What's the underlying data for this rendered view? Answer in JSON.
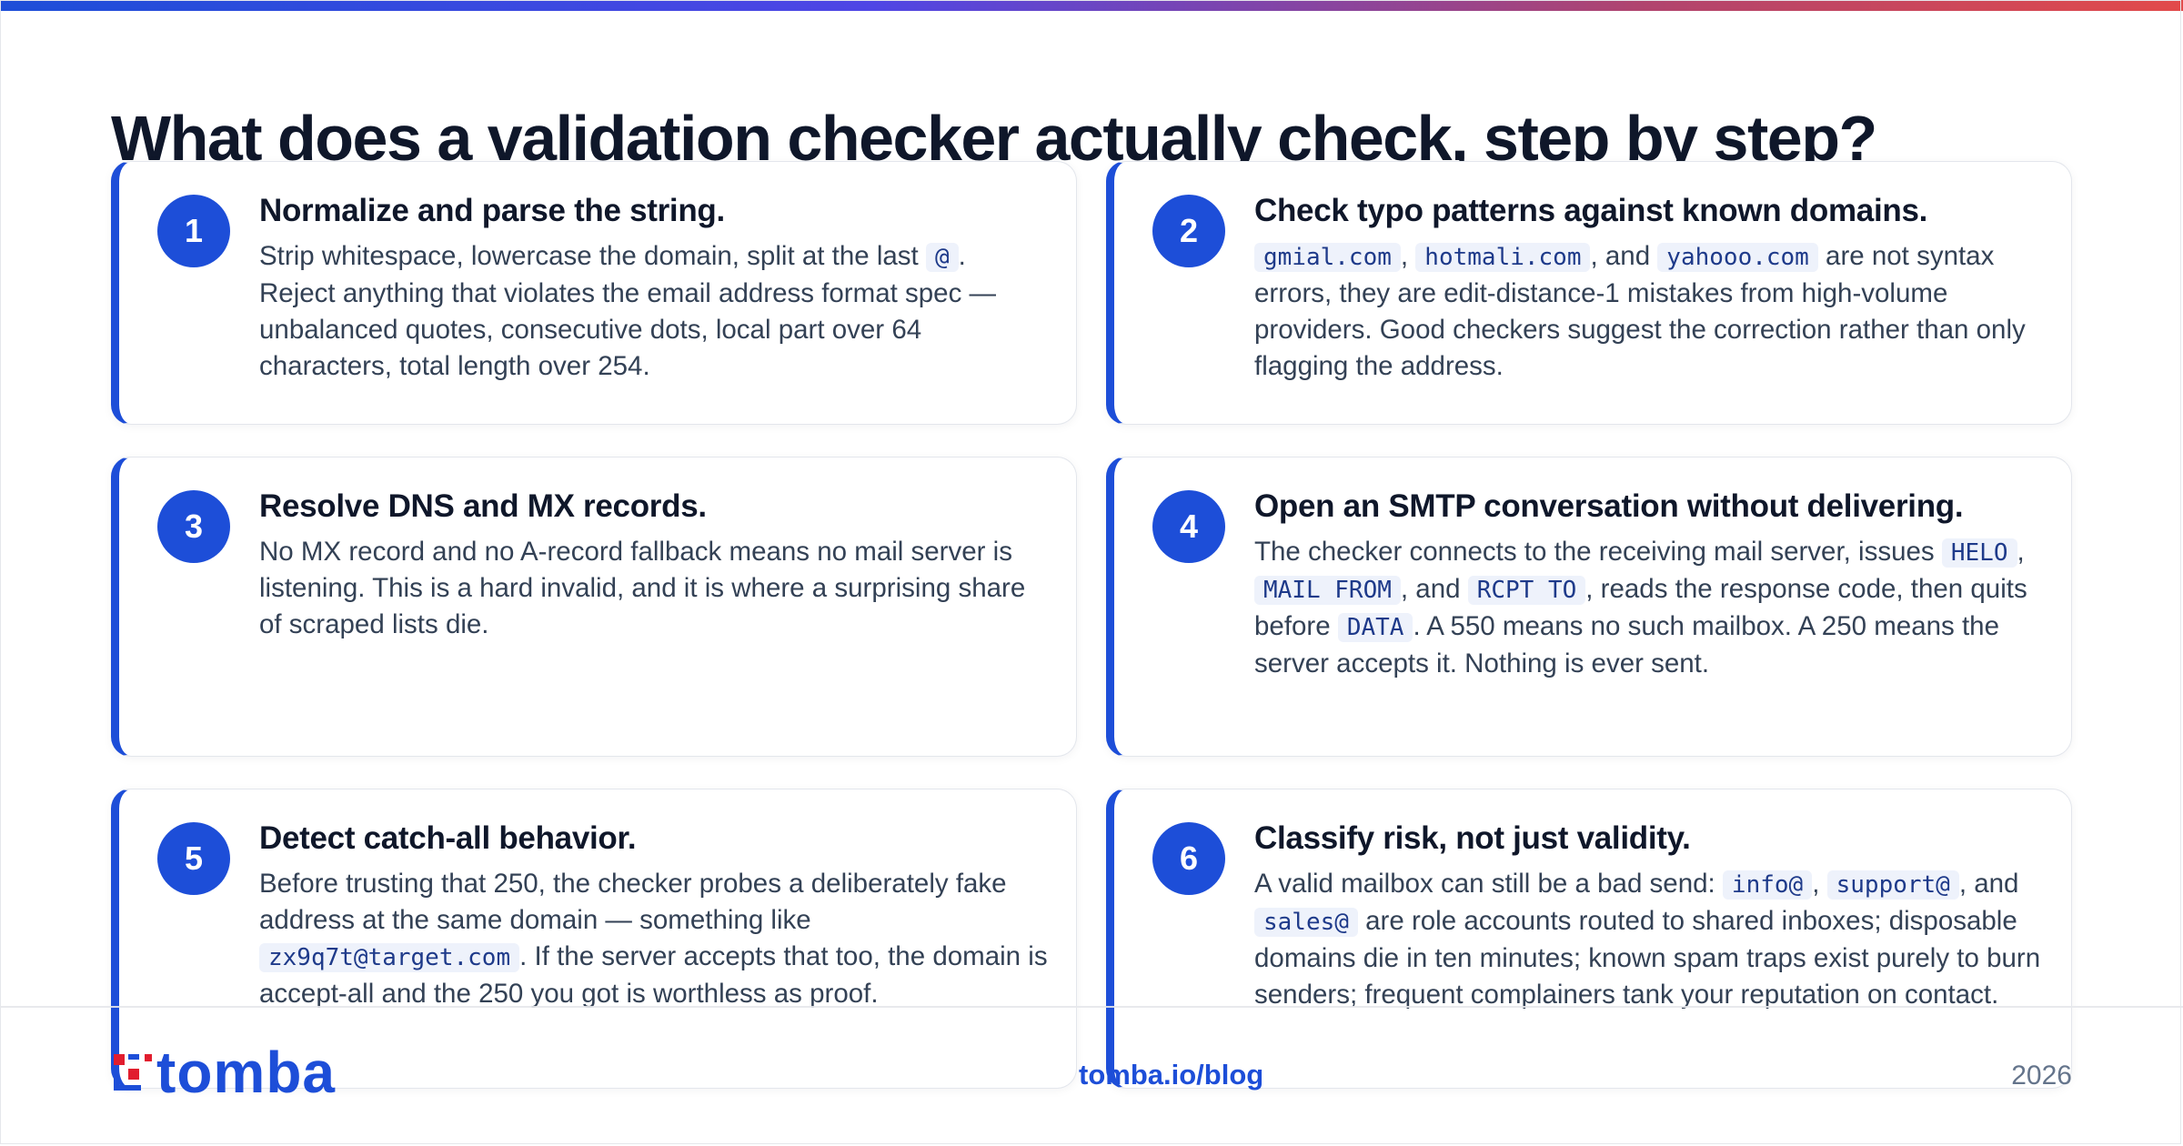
{
  "headline": "What does a validation checker actually check, step by step?",
  "steps": [
    {
      "number": "1",
      "title": "Normalize and parse the string.",
      "body": [
        {
          "t": "Strip whitespace, lowercase the domain, split at the last "
        },
        {
          "c": "@"
        },
        {
          "t": ". Reject anything that violates the email address format spec — unbalanced quotes, consecutive dots, local part over 64 characters, total length over 254."
        }
      ]
    },
    {
      "number": "2",
      "title": "Check typo patterns against known domains.",
      "body": [
        {
          "c": "gmial.com"
        },
        {
          "t": ", "
        },
        {
          "c": "hotmali.com"
        },
        {
          "t": ", and "
        },
        {
          "c": "yahooo.com"
        },
        {
          "t": " are not syntax errors, they are edit-distance-1 mistakes from high-volume providers. Good checkers suggest the correction rather than only flagging the address."
        }
      ]
    },
    {
      "number": "3",
      "title": "Resolve DNS and MX records.",
      "body": [
        {
          "t": "No MX record and no A-record fallback means no mail server is listening. This is a hard invalid, and it is where a surprising share of scraped lists die."
        }
      ]
    },
    {
      "number": "4",
      "title": "Open an SMTP conversation without delivering.",
      "body": [
        {
          "t": "The checker connects to the receiving mail server, issues "
        },
        {
          "c": "HELO"
        },
        {
          "t": ", "
        },
        {
          "c": "MAIL FROM"
        },
        {
          "t": ", and "
        },
        {
          "c": "RCPT TO"
        },
        {
          "t": ", reads the response code, then quits before "
        },
        {
          "c": "DATA"
        },
        {
          "t": ". A 550 means no such mailbox. A 250 means the server accepts it. Nothing is ever sent."
        }
      ]
    },
    {
      "number": "5",
      "title": "Detect catch-all behavior.",
      "body": [
        {
          "t": "Before trusting that 250, the checker probes a deliberately fake address at the same domain — something like "
        },
        {
          "c": "zx9q7t@target.com"
        },
        {
          "t": ". If the server accepts that too, the domain is accept-all and the 250 you got is worthless as proof."
        }
      ]
    },
    {
      "number": "6",
      "title": "Classify risk, not just validity.",
      "body": [
        {
          "t": "A valid mailbox can still be a bad send: "
        },
        {
          "c": "info@"
        },
        {
          "t": ", "
        },
        {
          "c": "support@"
        },
        {
          "t": ", and "
        },
        {
          "c": "sales@"
        },
        {
          "t": " are role accounts routed to shared inboxes; disposable domains die in ten minutes; known spam traps exist purely to burn senders; frequent complainers tank your reputation on contact."
        }
      ]
    }
  ],
  "footer": {
    "logo_text": "tomba",
    "link": "tomba.io/blog",
    "year": "2026"
  },
  "colors": {
    "accent": "#1d4ed8",
    "code_bg": "#eef2fb",
    "code_text": "#1e3a8a"
  }
}
